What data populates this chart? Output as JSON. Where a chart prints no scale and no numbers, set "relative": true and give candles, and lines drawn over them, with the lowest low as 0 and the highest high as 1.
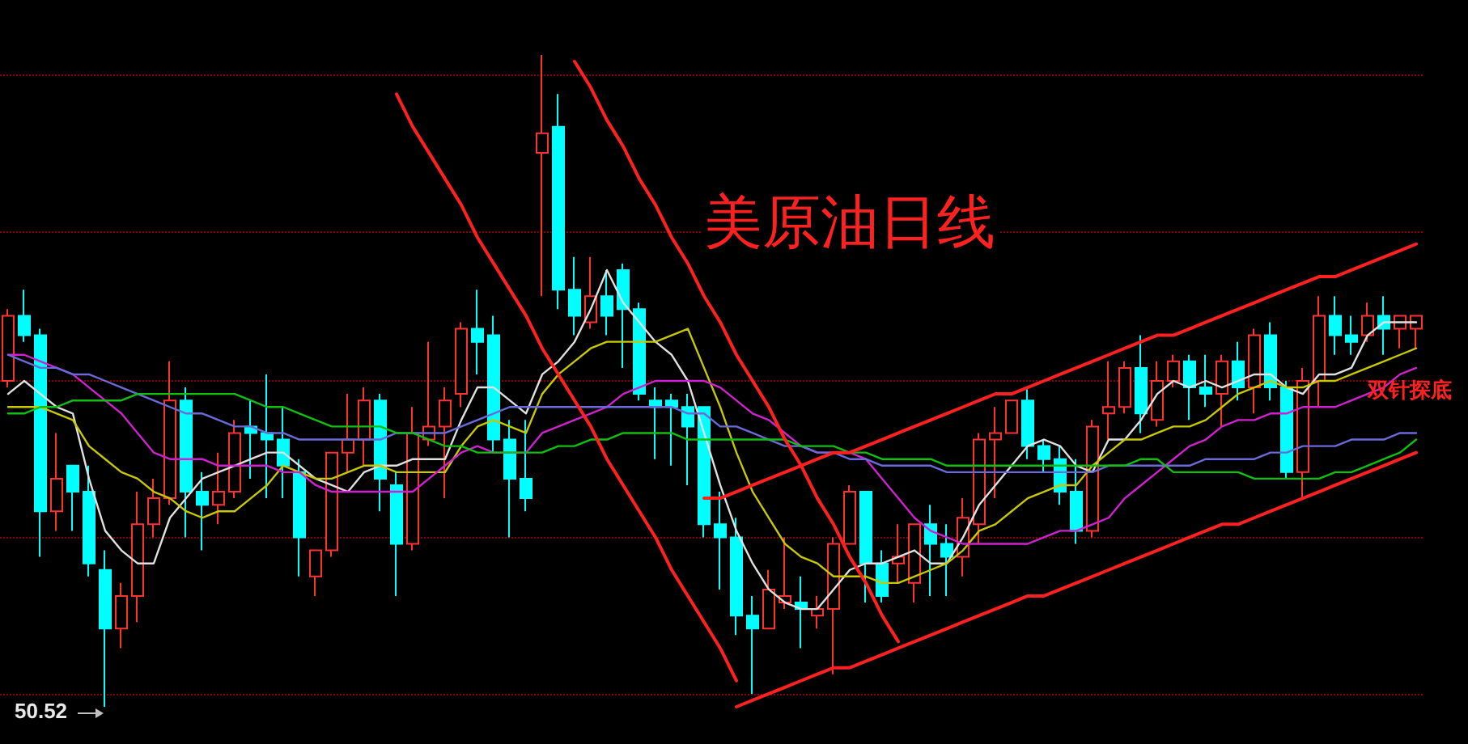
{
  "chart_data": {
    "type": "candlestick",
    "title": "美原油日线",
    "relative": true,
    "marker": "none",
    "ref_lines": [
      {
        "axis": "y",
        "value": 0.97,
        "color": "#8b0000",
        "line_style": "dotted"
      },
      {
        "axis": "y",
        "value": 0.73,
        "color": "#8b0000",
        "line_style": "dotted"
      },
      {
        "axis": "y",
        "value": 0.5,
        "color": "#8b0000",
        "line_style": "dotted"
      },
      {
        "axis": "y",
        "value": 0.26,
        "color": "#8b0000",
        "line_style": "dotted"
      },
      {
        "axis": "y",
        "value": 0.02,
        "color": "#8b0000",
        "line_style": "dotted"
      }
    ],
    "categories": [
      null,
      null,
      null,
      null,
      null,
      null,
      null,
      null,
      null,
      null,
      null,
      null,
      null,
      null,
      null,
      null,
      null,
      null,
      null,
      null,
      null,
      null,
      null,
      null,
      null,
      null,
      null,
      null,
      null,
      null,
      null,
      null,
      null,
      null,
      null,
      null,
      null,
      null,
      null,
      null,
      null,
      null,
      null,
      null,
      null,
      null,
      null,
      null,
      null,
      null,
      null,
      null,
      null,
      null,
      null,
      null,
      null,
      null,
      null,
      null,
      null,
      null,
      null,
      null,
      null,
      null,
      null,
      null,
      null,
      null,
      null,
      null,
      null,
      null,
      null,
      null,
      null,
      null,
      null,
      null,
      null,
      null,
      null,
      null,
      null,
      null,
      null,
      null
    ],
    "ohlc": [
      [
        0.5,
        0.61,
        0.49,
        0.6
      ],
      [
        0.6,
        0.64,
        0.56,
        0.57
      ],
      [
        0.57,
        0.58,
        0.23,
        0.3
      ],
      [
        0.3,
        0.42,
        0.27,
        0.35
      ],
      [
        0.37,
        0.37,
        0.27,
        0.33
      ],
      [
        0.33,
        0.37,
        0.2,
        0.22
      ],
      [
        0.21,
        0.24,
        0,
        0.12
      ],
      [
        0.12,
        0.19,
        0.09,
        0.17
      ],
      [
        0.17,
        0.33,
        0.13,
        0.28
      ],
      [
        0.28,
        0.35,
        0.26,
        0.32
      ],
      [
        0.32,
        0.53,
        0.31,
        0.47
      ],
      [
        0.47,
        0.49,
        0.26,
        0.33
      ],
      [
        0.33,
        0.36,
        0.24,
        0.31
      ],
      [
        0.31,
        0.39,
        0.28,
        0.33
      ],
      [
        0.33,
        0.44,
        0.32,
        0.42
      ],
      [
        0.43,
        0.47,
        0.35,
        0.42
      ],
      [
        0.42,
        0.51,
        0.32,
        0.41
      ],
      [
        0.41,
        0.46,
        0.32,
        0.37
      ],
      [
        0.36,
        0.38,
        0.2,
        0.26
      ],
      [
        0.2,
        0.24,
        0.17,
        0.24
      ],
      [
        0.24,
        0.39,
        0.23,
        0.39
      ],
      [
        0.39,
        0.48,
        0.36,
        0.41
      ],
      [
        0.41,
        0.49,
        0.37,
        0.47
      ],
      [
        0.47,
        0.48,
        0.3,
        0.35
      ],
      [
        0.34,
        0.36,
        0.17,
        0.25
      ],
      [
        0.25,
        0.46,
        0.24,
        0.42
      ],
      [
        0.41,
        0.56,
        0.4,
        0.43
      ],
      [
        0.43,
        0.49,
        0.32,
        0.47
      ],
      [
        0.48,
        0.59,
        0.46,
        0.58
      ],
      [
        0.58,
        0.64,
        0.51,
        0.56
      ],
      [
        0.57,
        0.6,
        0.39,
        0.41
      ],
      [
        0.41,
        0.44,
        0.26,
        0.35
      ],
      [
        0.35,
        0.44,
        0.3,
        0.32
      ],
      [
        0.85,
        1,
        0.63,
        0.88
      ],
      [
        0.89,
        0.94,
        0.61,
        0.64
      ],
      [
        0.64,
        0.69,
        0.57,
        0.6
      ],
      [
        0.59,
        0.69,
        0.58,
        0.63
      ],
      [
        0.63,
        0.67,
        0.57,
        0.6
      ],
      [
        0.67,
        0.68,
        0.52,
        0.61
      ],
      [
        0.61,
        0.62,
        0.47,
        0.48
      ],
      [
        0.47,
        0.49,
        0.38,
        0.46
      ],
      [
        0.47,
        0.48,
        0.37,
        0.46
      ],
      [
        0.46,
        0.48,
        0.34,
        0.43
      ],
      [
        0.46,
        0.46,
        0.26,
        0.28
      ],
      [
        0.28,
        0.33,
        0.18,
        0.26
      ],
      [
        0.26,
        0.29,
        0.11,
        0.14
      ],
      [
        0.14,
        0.17,
        0.02,
        0.12
      ],
      [
        0.12,
        0.21,
        0.12,
        0.18
      ],
      [
        0.16,
        0.26,
        0.15,
        0.17
      ],
      [
        0.16,
        0.2,
        0.09,
        0.15
      ],
      [
        0.14,
        0.17,
        0.12,
        0.15
      ],
      [
        0.15,
        0.26,
        0.05,
        0.25
      ],
      [
        0.25,
        0.34,
        0.25,
        0.33
      ],
      [
        0.33,
        0.33,
        0.16,
        0.22
      ],
      [
        0.22,
        0.24,
        0.16,
        0.17
      ],
      [
        0.22,
        0.28,
        0.19,
        0.23
      ],
      [
        0.19,
        0.28,
        0.16,
        0.28
      ],
      [
        0.28,
        0.31,
        0.17,
        0.25
      ],
      [
        0.25,
        0.28,
        0.17,
        0.23
      ],
      [
        0.23,
        0.32,
        0.2,
        0.29
      ],
      [
        0.28,
        0.42,
        0.25,
        0.41
      ],
      [
        0.41,
        0.46,
        0.32,
        0.42
      ],
      [
        0.42,
        0.47,
        0.42,
        0.47
      ],
      [
        0.47,
        0.49,
        0.38,
        0.4
      ],
      [
        0.4,
        0.41,
        0.36,
        0.38
      ],
      [
        0.38,
        0.4,
        0.31,
        0.33
      ],
      [
        0.33,
        0.38,
        0.25,
        0.27
      ],
      [
        0.27,
        0.44,
        0.26,
        0.43
      ],
      [
        0.45,
        0.53,
        0.41,
        0.46
      ],
      [
        0.46,
        0.53,
        0.45,
        0.52
      ],
      [
        0.52,
        0.57,
        0.42,
        0.45
      ],
      [
        0.44,
        0.53,
        0.43,
        0.5
      ],
      [
        0.5,
        0.54,
        0.49,
        0.53
      ],
      [
        0.53,
        0.54,
        0.44,
        0.49
      ],
      [
        0.49,
        0.54,
        0.46,
        0.48
      ],
      [
        0.48,
        0.54,
        0.43,
        0.53
      ],
      [
        0.53,
        0.56,
        0.47,
        0.49
      ],
      [
        0.49,
        0.58,
        0.45,
        0.57
      ],
      [
        0.57,
        0.59,
        0.47,
        0.49
      ],
      [
        0.49,
        0.5,
        0.35,
        0.36
      ],
      [
        0.36,
        0.52,
        0.32,
        0.5
      ],
      [
        0.5,
        0.63,
        0.46,
        0.6
      ],
      [
        0.6,
        0.63,
        0.54,
        0.57
      ],
      [
        0.57,
        0.6,
        0.54,
        0.56
      ],
      [
        0.57,
        0.62,
        0.56,
        0.6
      ],
      [
        0.6,
        0.63,
        0.54,
        0.58
      ],
      [
        0.58,
        0.6,
        0.55,
        0.6
      ],
      [
        0.58,
        0.6,
        0.55,
        0.6
      ]
    ],
    "series": [
      {
        "type": "line",
        "color": "#e0e0e0",
        "values": [
          0.48,
          0.5,
          0.48,
          0.46,
          0.45,
          0.35,
          0.27,
          0.24,
          0.22,
          0.22,
          0.29,
          0.32,
          0.35,
          0.36,
          0.37,
          0.38,
          0.39,
          0.39,
          0.37,
          0.35,
          0.34,
          0.33,
          0.36,
          0.37,
          0.37,
          0.38,
          0.38,
          0.38,
          0.44,
          0.49,
          0.49,
          0.47,
          0.45,
          0.51,
          0.53,
          0.56,
          0.61,
          0.67,
          0.62,
          0.59,
          0.56,
          0.54,
          0.5,
          0.42,
          0.34,
          0.27,
          0.22,
          0.18,
          0.16,
          0.15,
          0.15,
          0.18,
          0.21,
          0.22,
          0.22,
          0.23,
          0.24,
          0.22,
          0.22,
          0.26,
          0.31,
          0.34,
          0.37,
          0.4,
          0.41,
          0.4,
          0.37,
          0.36,
          0.41,
          0.41,
          0.44,
          0.48,
          0.5,
          0.49,
          0.5,
          0.49,
          0.5,
          0.51,
          0.51,
          0.49,
          0.48,
          0.51,
          0.51,
          0.52,
          0.57,
          0.59,
          0.59,
          0.59
        ]
      },
      {
        "type": "line",
        "color": "#c8c800",
        "values": [
          0.46,
          0.46,
          0.46,
          0.45,
          0.44,
          0.4,
          0.38,
          0.36,
          0.35,
          0.33,
          0.32,
          0.3,
          0.29,
          0.3,
          0.3,
          0.32,
          0.34,
          0.37,
          0.36,
          0.35,
          0.35,
          0.36,
          0.37,
          0.37,
          0.36,
          0.36,
          0.36,
          0.36,
          0.4,
          0.43,
          0.44,
          0.43,
          0.42,
          0.48,
          0.51,
          0.53,
          0.55,
          0.56,
          0.56,
          0.56,
          0.56,
          0.57,
          0.58,
          0.52,
          0.46,
          0.39,
          0.33,
          0.29,
          0.25,
          0.23,
          0.22,
          0.2,
          0.2,
          0.2,
          0.19,
          0.19,
          0.2,
          0.21,
          0.22,
          0.24,
          0.27,
          0.28,
          0.3,
          0.32,
          0.33,
          0.34,
          0.34,
          0.37,
          0.39,
          0.41,
          0.41,
          0.42,
          0.43,
          0.43,
          0.44,
          0.46,
          0.48,
          0.49,
          0.5,
          0.49,
          0.49,
          0.5,
          0.5,
          0.51,
          0.52,
          0.53,
          0.54,
          0.55
        ]
      },
      {
        "type": "line",
        "color": "#d020d0",
        "values": [
          0.54,
          0.54,
          0.53,
          0.52,
          0.51,
          0.49,
          0.47,
          0.45,
          0.42,
          0.39,
          0.38,
          0.38,
          0.38,
          0.37,
          0.37,
          0.37,
          0.37,
          0.36,
          0.36,
          0.34,
          0.33,
          0.33,
          0.33,
          0.33,
          0.33,
          0.33,
          0.35,
          0.37,
          0.39,
          0.4,
          0.39,
          0.39,
          0.39,
          0.42,
          0.43,
          0.44,
          0.45,
          0.46,
          0.48,
          0.49,
          0.5,
          0.5,
          0.5,
          0.5,
          0.49,
          0.47,
          0.45,
          0.44,
          0.42,
          0.4,
          0.39,
          0.39,
          0.39,
          0.38,
          0.35,
          0.32,
          0.29,
          0.27,
          0.26,
          0.25,
          0.25,
          0.25,
          0.25,
          0.25,
          0.26,
          0.27,
          0.27,
          0.28,
          0.29,
          0.32,
          0.34,
          0.36,
          0.38,
          0.4,
          0.41,
          0.43,
          0.44,
          0.44,
          0.45,
          0.45,
          0.46,
          0.46,
          0.46,
          0.47,
          0.48,
          0.49,
          0.51,
          0.52
        ]
      },
      {
        "type": "line",
        "color": "#6a6ad8",
        "values": [
          0.54,
          0.53,
          0.52,
          0.52,
          0.51,
          0.51,
          0.5,
          0.49,
          0.48,
          0.47,
          0.46,
          0.45,
          0.45,
          0.44,
          0.43,
          0.43,
          0.42,
          0.42,
          0.41,
          0.41,
          0.41,
          0.41,
          0.41,
          0.41,
          0.42,
          0.42,
          0.42,
          0.42,
          0.43,
          0.44,
          0.45,
          0.46,
          0.46,
          0.46,
          0.46,
          0.46,
          0.46,
          0.46,
          0.46,
          0.46,
          0.46,
          0.46,
          0.45,
          0.45,
          0.43,
          0.43,
          0.42,
          0.41,
          0.4,
          0.4,
          0.39,
          0.39,
          0.38,
          0.38,
          0.37,
          0.37,
          0.37,
          0.37,
          0.36,
          0.36,
          0.36,
          0.36,
          0.36,
          0.36,
          0.36,
          0.36,
          0.36,
          0.36,
          0.37,
          0.37,
          0.37,
          0.37,
          0.37,
          0.37,
          0.38,
          0.38,
          0.38,
          0.38,
          0.39,
          0.39,
          0.4,
          0.4,
          0.4,
          0.41,
          0.41,
          0.41,
          0.42,
          0.42
        ]
      },
      {
        "type": "line",
        "color": "#10c010",
        "values": [
          0.45,
          0.45,
          0.46,
          0.46,
          0.47,
          0.47,
          0.47,
          0.47,
          0.48,
          0.48,
          0.48,
          0.48,
          0.48,
          0.48,
          0.48,
          0.47,
          0.46,
          0.46,
          0.45,
          0.44,
          0.43,
          0.43,
          0.43,
          0.43,
          0.42,
          0.42,
          0.41,
          0.4,
          0.4,
          0.39,
          0.39,
          0.39,
          0.39,
          0.39,
          0.4,
          0.4,
          0.41,
          0.41,
          0.42,
          0.42,
          0.42,
          0.42,
          0.41,
          0.41,
          0.41,
          0.41,
          0.41,
          0.41,
          0.41,
          0.4,
          0.4,
          0.4,
          0.39,
          0.39,
          0.38,
          0.38,
          0.38,
          0.38,
          0.37,
          0.37,
          0.37,
          0.37,
          0.37,
          0.37,
          0.37,
          0.37,
          0.37,
          0.37,
          0.37,
          0.37,
          0.38,
          0.38,
          0.36,
          0.36,
          0.36,
          0.36,
          0.36,
          0.35,
          0.35,
          0.35,
          0.35,
          0.35,
          0.36,
          0.36,
          0.37,
          0.38,
          0.39,
          0.41
        ]
      },
      {
        "type": "line",
        "color": "#ff2020",
        "values": [
          null,
          null,
          null,
          null,
          null,
          null,
          null,
          null,
          null,
          null,
          null,
          null,
          null,
          null,
          null,
          null,
          null,
          null,
          null,
          null,
          null,
          null,
          null,
          null,
          0.94,
          0.89,
          0.85,
          0.81,
          0.77,
          0.72,
          0.68,
          0.64,
          0.6,
          0.55,
          0.51,
          0.47,
          0.43,
          0.38,
          0.34,
          0.3,
          0.26,
          0.21,
          0.17,
          0.13,
          0.09,
          0.04,
          null,
          null,
          null,
          null,
          null,
          null,
          null,
          null,
          null,
          null,
          null,
          null,
          null,
          null,
          null,
          null,
          null,
          null,
          null,
          null,
          null,
          null,
          null,
          null,
          null,
          null,
          null,
          null,
          null,
          null,
          null,
          null,
          null,
          null,
          null,
          null,
          null,
          null,
          null,
          null,
          null,
          null
        ]
      },
      {
        "type": "line",
        "color": "#ff2020",
        "values": [
          null,
          null,
          null,
          null,
          null,
          null,
          null,
          null,
          null,
          null,
          null,
          null,
          null,
          null,
          null,
          null,
          null,
          null,
          null,
          null,
          null,
          null,
          null,
          null,
          null,
          null,
          null,
          null,
          null,
          null,
          null,
          null,
          null,
          null,
          null,
          0.99,
          0.95,
          0.9,
          0.86,
          0.81,
          0.77,
          0.72,
          0.68,
          0.63,
          0.59,
          0.54,
          0.5,
          0.46,
          0.41,
          0.37,
          0.32,
          0.28,
          0.23,
          0.19,
          0.14,
          0.1,
          null,
          null,
          null,
          null,
          null,
          null,
          null,
          null,
          null,
          null,
          null,
          null,
          null,
          null,
          null,
          null,
          null,
          null,
          null,
          null,
          null,
          null,
          null,
          null,
          null,
          null,
          null,
          null,
          null,
          null,
          null,
          null
        ]
      },
      {
        "type": "line",
        "color": "#ff2020",
        "values": [
          null,
          null,
          null,
          null,
          null,
          null,
          null,
          null,
          null,
          null,
          null,
          null,
          null,
          null,
          null,
          null,
          null,
          null,
          null,
          null,
          null,
          null,
          null,
          null,
          null,
          null,
          null,
          null,
          null,
          null,
          null,
          null,
          null,
          null,
          null,
          null,
          null,
          null,
          null,
          null,
          null,
          null,
          null,
          0.32,
          0.32,
          0.33,
          0.34,
          0.35,
          0.36,
          0.37,
          0.38,
          0.39,
          0.39,
          0.4,
          0.41,
          0.42,
          0.43,
          0.44,
          0.45,
          0.46,
          0.47,
          0.48,
          0.48,
          0.49,
          0.5,
          0.51,
          0.52,
          0.53,
          0.54,
          0.55,
          0.56,
          0.57,
          0.57,
          0.58,
          0.59,
          0.6,
          0.61,
          0.62,
          0.63,
          0.64,
          0.65,
          0.66,
          0.66,
          0.67,
          0.68,
          0.69,
          0.7,
          0.71
        ]
      },
      {
        "type": "line",
        "color": "#ff2020",
        "values": [
          null,
          null,
          null,
          null,
          null,
          null,
          null,
          null,
          null,
          null,
          null,
          null,
          null,
          null,
          null,
          null,
          null,
          null,
          null,
          null,
          null,
          null,
          null,
          null,
          null,
          null,
          null,
          null,
          null,
          null,
          null,
          null,
          null,
          null,
          null,
          null,
          null,
          null,
          null,
          null,
          null,
          null,
          null,
          null,
          null,
          0.0,
          0.01,
          0.02,
          0.03,
          0.04,
          0.05,
          0.06,
          0.06,
          0.07,
          0.08,
          0.09,
          0.1,
          0.11,
          0.12,
          0.13,
          0.14,
          0.15,
          0.16,
          0.17,
          0.17,
          0.18,
          0.19,
          0.2,
          0.21,
          0.22,
          0.23,
          0.24,
          0.25,
          0.26,
          0.27,
          0.28,
          0.28,
          0.29,
          0.3,
          0.31,
          0.32,
          0.33,
          0.34,
          0.35,
          0.36,
          0.37,
          0.38,
          0.39
        ]
      }
    ],
    "annotations": [
      "50.52",
      "双针探底"
    ]
  }
}
